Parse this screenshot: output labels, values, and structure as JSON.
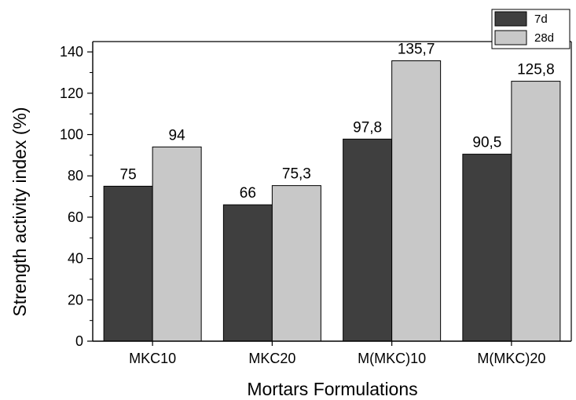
{
  "chart_data": {
    "type": "bar",
    "categories": [
      "MKC10",
      "MKC20",
      "M(MKC)10",
      "M(MKC)20"
    ],
    "series": [
      {
        "name": "7d",
        "values": [
          75,
          66,
          97.8,
          90.5
        ],
        "labels": [
          "75",
          "66",
          "97,8",
          "90,5"
        ],
        "color": "#3f3f3f"
      },
      {
        "name": "28d",
        "values": [
          94,
          75.3,
          135.7,
          125.8
        ],
        "labels": [
          "94",
          "75,3",
          "135,7",
          "125,8"
        ],
        "color": "#c8c8c8"
      }
    ],
    "xlabel": "Mortars Formulations",
    "ylabel": "Strength activity index (%)",
    "ylim": [
      0,
      145
    ],
    "yticks": [
      0,
      20,
      40,
      60,
      80,
      100,
      120,
      140
    ],
    "legend_position": "top-right",
    "grid": false
  }
}
